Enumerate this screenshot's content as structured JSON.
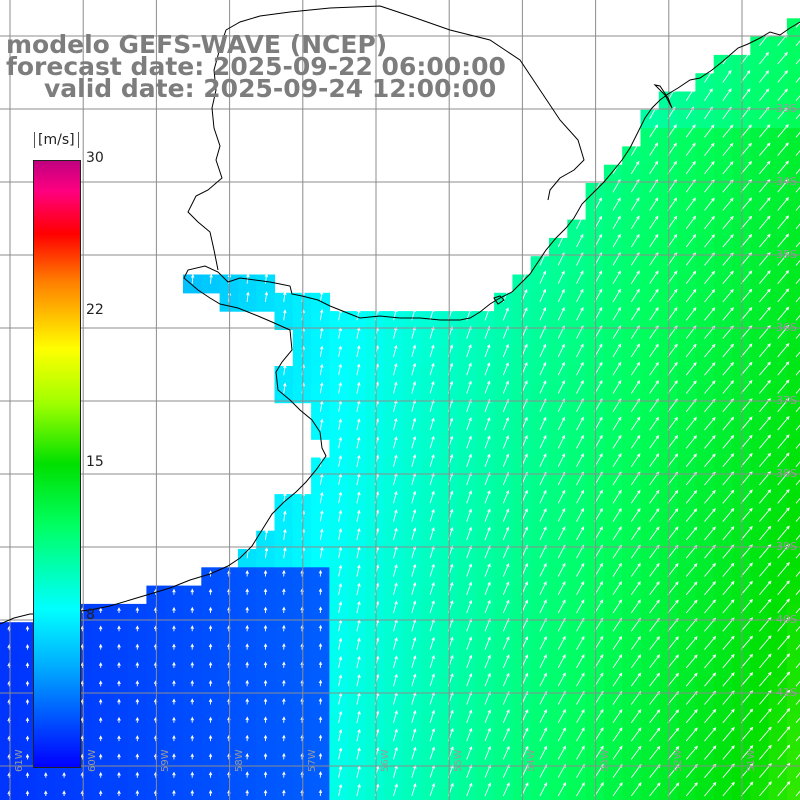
{
  "title": {
    "model": "modelo GEFS-WAVE (NCEP)",
    "forecast": "forecast date: 2025-09-22 06:00:00",
    "valid": "valid date: 2025-09-24 12:00:00"
  },
  "colorbar": {
    "units": "[m/s]",
    "ticks": [
      "30",
      "22",
      "15",
      "8"
    ],
    "tick_values": [
      30,
      22,
      15,
      8
    ],
    "range": [
      0,
      30
    ],
    "colors": [
      "#0000ff",
      "#00b0ff",
      "#00ffff",
      "#00ff60",
      "#00e000",
      "#a0ff00",
      "#ffff00",
      "#ff8000",
      "#ff0000",
      "#ff0080",
      "#c00080"
    ]
  },
  "axes": {
    "lon_labels": [
      "61W",
      "60W",
      "59W",
      "58W",
      "57W",
      "56W",
      "55W",
      "54W",
      "53W",
      "52W",
      "51W"
    ],
    "lat_labels": [
      "33S",
      "34S",
      "35S",
      "36S",
      "37S",
      "38S",
      "39S",
      "40S",
      "41S"
    ],
    "lon_range": [
      -61,
      -50
    ],
    "lat_range": [
      -41,
      -30
    ],
    "grid": true
  },
  "colors": {
    "land": "#ffffff",
    "grid": "#8c8c8c",
    "coast": "#000000",
    "label": "#7d7d7d"
  }
}
